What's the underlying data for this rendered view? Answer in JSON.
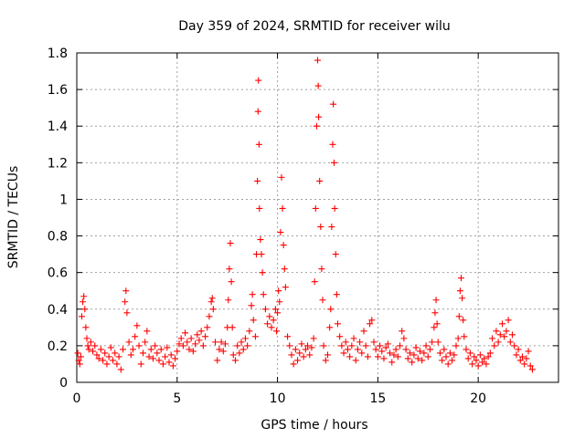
{
  "chart_data": {
    "type": "scatter",
    "title": "Day 359 of 2024, SRMTID for receiver wilu",
    "xlabel": "GPS time / hours",
    "ylabel": "SRMTID / TECUs",
    "xlim": [
      0,
      24
    ],
    "ylim": [
      0,
      1.8
    ],
    "x_ticks": [
      0,
      5,
      10,
      15,
      20
    ],
    "x_tick_labels": [
      "0",
      "5",
      "10",
      "15",
      "20"
    ],
    "y_ticks": [
      0,
      0.2,
      0.4,
      0.6,
      0.8,
      1.0,
      1.2,
      1.4,
      1.6,
      1.8
    ],
    "y_tick_labels": [
      "0",
      "0.2",
      "0.4",
      "0.6",
      "0.8",
      "1",
      "1.2",
      "1.4",
      "1.6",
      "1.8"
    ],
    "grid": true,
    "marker": "plus",
    "color": "#ff0000",
    "series": [
      {
        "name": "SRMTID",
        "points": [
          [
            0.05,
            0.16
          ],
          [
            0.1,
            0.12
          ],
          [
            0.15,
            0.1
          ],
          [
            0.2,
            0.14
          ],
          [
            0.25,
            0.36
          ],
          [
            0.3,
            0.44
          ],
          [
            0.35,
            0.47
          ],
          [
            0.4,
            0.4
          ],
          [
            0.45,
            0.3
          ],
          [
            0.5,
            0.24
          ],
          [
            0.55,
            0.2
          ],
          [
            0.6,
            0.18
          ],
          [
            0.7,
            0.22
          ],
          [
            0.8,
            0.17
          ],
          [
            0.9,
            0.2
          ],
          [
            1.0,
            0.15
          ],
          [
            1.1,
            0.13
          ],
          [
            1.2,
            0.18
          ],
          [
            1.3,
            0.12
          ],
          [
            1.4,
            0.16
          ],
          [
            1.5,
            0.1
          ],
          [
            1.6,
            0.14
          ],
          [
            1.7,
            0.19
          ],
          [
            1.8,
            0.12
          ],
          [
            1.9,
            0.16
          ],
          [
            2.0,
            0.1
          ],
          [
            2.1,
            0.14
          ],
          [
            2.2,
            0.07
          ],
          [
            2.3,
            0.18
          ],
          [
            2.4,
            0.44
          ],
          [
            2.45,
            0.5
          ],
          [
            2.5,
            0.38
          ],
          [
            2.6,
            0.22
          ],
          [
            2.7,
            0.15
          ],
          [
            2.8,
            0.18
          ],
          [
            2.9,
            0.25
          ],
          [
            3.0,
            0.31
          ],
          [
            3.1,
            0.2
          ],
          [
            3.2,
            0.1
          ],
          [
            3.3,
            0.16
          ],
          [
            3.4,
            0.22
          ],
          [
            3.5,
            0.28
          ],
          [
            3.6,
            0.14
          ],
          [
            3.7,
            0.18
          ],
          [
            3.8,
            0.13
          ],
          [
            3.9,
            0.2
          ],
          [
            4.0,
            0.16
          ],
          [
            4.1,
            0.12
          ],
          [
            4.2,
            0.18
          ],
          [
            4.3,
            0.1
          ],
          [
            4.4,
            0.14
          ],
          [
            4.5,
            0.19
          ],
          [
            4.6,
            0.11
          ],
          [
            4.7,
            0.15
          ],
          [
            4.8,
            0.09
          ],
          [
            4.9,
            0.13
          ],
          [
            5.0,
            0.17
          ],
          [
            5.1,
            0.21
          ],
          [
            5.2,
            0.24
          ],
          [
            5.3,
            0.2
          ],
          [
            5.4,
            0.27
          ],
          [
            5.5,
            0.22
          ],
          [
            5.6,
            0.18
          ],
          [
            5.7,
            0.24
          ],
          [
            5.8,
            0.17
          ],
          [
            5.9,
            0.21
          ],
          [
            6.0,
            0.26
          ],
          [
            6.1,
            0.23
          ],
          [
            6.2,
            0.28
          ],
          [
            6.3,
            0.2
          ],
          [
            6.4,
            0.25
          ],
          [
            6.5,
            0.3
          ],
          [
            6.6,
            0.36
          ],
          [
            6.7,
            0.44
          ],
          [
            6.75,
            0.46
          ],
          [
            6.8,
            0.4
          ],
          [
            6.9,
            0.22
          ],
          [
            7.0,
            0.12
          ],
          [
            7.1,
            0.18
          ],
          [
            7.2,
            0.22
          ],
          [
            7.3,
            0.17
          ],
          [
            7.4,
            0.21
          ],
          [
            7.5,
            0.3
          ],
          [
            7.55,
            0.45
          ],
          [
            7.6,
            0.62
          ],
          [
            7.65,
            0.76
          ],
          [
            7.7,
            0.55
          ],
          [
            7.75,
            0.3
          ],
          [
            7.8,
            0.15
          ],
          [
            7.9,
            0.12
          ],
          [
            8.0,
            0.2
          ],
          [
            8.1,
            0.16
          ],
          [
            8.2,
            0.22
          ],
          [
            8.3,
            0.18
          ],
          [
            8.4,
            0.24
          ],
          [
            8.5,
            0.2
          ],
          [
            8.6,
            0.28
          ],
          [
            8.7,
            0.42
          ],
          [
            8.75,
            0.48
          ],
          [
            8.8,
            0.34
          ],
          [
            8.9,
            0.25
          ],
          [
            8.95,
            0.7
          ],
          [
            9.0,
            1.1
          ],
          [
            9.03,
            1.48
          ],
          [
            9.05,
            1.65
          ],
          [
            9.08,
            1.3
          ],
          [
            9.1,
            0.95
          ],
          [
            9.15,
            0.78
          ],
          [
            9.2,
            0.7
          ],
          [
            9.25,
            0.6
          ],
          [
            9.3,
            0.48
          ],
          [
            9.4,
            0.4
          ],
          [
            9.5,
            0.32
          ],
          [
            9.6,
            0.36
          ],
          [
            9.7,
            0.3
          ],
          [
            9.8,
            0.34
          ],
          [
            9.9,
            0.4
          ],
          [
            9.95,
            0.28
          ],
          [
            10.0,
            0.38
          ],
          [
            10.05,
            0.5
          ],
          [
            10.1,
            0.44
          ],
          [
            10.15,
            0.82
          ],
          [
            10.2,
            1.12
          ],
          [
            10.25,
            0.95
          ],
          [
            10.3,
            0.75
          ],
          [
            10.35,
            0.62
          ],
          [
            10.4,
            0.52
          ],
          [
            10.5,
            0.25
          ],
          [
            10.6,
            0.2
          ],
          [
            10.7,
            0.15
          ],
          [
            10.8,
            0.1
          ],
          [
            10.9,
            0.18
          ],
          [
            11.0,
            0.12
          ],
          [
            11.1,
            0.16
          ],
          [
            11.2,
            0.21
          ],
          [
            11.3,
            0.14
          ],
          [
            11.4,
            0.18
          ],
          [
            11.5,
            0.2
          ],
          [
            11.6,
            0.15
          ],
          [
            11.7,
            0.19
          ],
          [
            11.8,
            0.24
          ],
          [
            11.85,
            0.55
          ],
          [
            11.9,
            0.95
          ],
          [
            11.95,
            1.4
          ],
          [
            12.0,
            1.76
          ],
          [
            12.03,
            1.62
          ],
          [
            12.05,
            1.45
          ],
          [
            12.1,
            1.1
          ],
          [
            12.15,
            0.85
          ],
          [
            12.2,
            0.62
          ],
          [
            12.25,
            0.45
          ],
          [
            12.3,
            0.2
          ],
          [
            12.4,
            0.12
          ],
          [
            12.5,
            0.15
          ],
          [
            12.6,
            0.3
          ],
          [
            12.65,
            0.4
          ],
          [
            12.7,
            0.85
          ],
          [
            12.75,
            1.3
          ],
          [
            12.78,
            1.52
          ],
          [
            12.82,
            1.2
          ],
          [
            12.85,
            0.95
          ],
          [
            12.9,
            0.7
          ],
          [
            12.95,
            0.48
          ],
          [
            13.0,
            0.32
          ],
          [
            13.1,
            0.25
          ],
          [
            13.2,
            0.2
          ],
          [
            13.3,
            0.16
          ],
          [
            13.4,
            0.22
          ],
          [
            13.5,
            0.18
          ],
          [
            13.6,
            0.14
          ],
          [
            13.7,
            0.2
          ],
          [
            13.8,
            0.24
          ],
          [
            13.9,
            0.12
          ],
          [
            14.0,
            0.18
          ],
          [
            14.1,
            0.22
          ],
          [
            14.2,
            0.16
          ],
          [
            14.3,
            0.28
          ],
          [
            14.4,
            0.2
          ],
          [
            14.5,
            0.14
          ],
          [
            14.6,
            0.32
          ],
          [
            14.7,
            0.34
          ],
          [
            14.8,
            0.22
          ],
          [
            14.9,
            0.18
          ],
          [
            15.0,
            0.14
          ],
          [
            15.1,
            0.2
          ],
          [
            15.2,
            0.17
          ],
          [
            15.3,
            0.13
          ],
          [
            15.4,
            0.19
          ],
          [
            15.5,
            0.21
          ],
          [
            15.6,
            0.16
          ],
          [
            15.7,
            0.11
          ],
          [
            15.8,
            0.15
          ],
          [
            15.9,
            0.18
          ],
          [
            16.0,
            0.14
          ],
          [
            16.1,
            0.2
          ],
          [
            16.2,
            0.28
          ],
          [
            16.3,
            0.24
          ],
          [
            16.4,
            0.18
          ],
          [
            16.5,
            0.13
          ],
          [
            16.6,
            0.16
          ],
          [
            16.7,
            0.11
          ],
          [
            16.8,
            0.15
          ],
          [
            16.9,
            0.19
          ],
          [
            17.0,
            0.13
          ],
          [
            17.1,
            0.17
          ],
          [
            17.2,
            0.12
          ],
          [
            17.3,
            0.16
          ],
          [
            17.4,
            0.2
          ],
          [
            17.5,
            0.14
          ],
          [
            17.6,
            0.18
          ],
          [
            17.7,
            0.22
          ],
          [
            17.8,
            0.3
          ],
          [
            17.85,
            0.38
          ],
          [
            17.9,
            0.45
          ],
          [
            17.95,
            0.32
          ],
          [
            18.0,
            0.22
          ],
          [
            18.1,
            0.16
          ],
          [
            18.2,
            0.12
          ],
          [
            18.3,
            0.18
          ],
          [
            18.4,
            0.14
          ],
          [
            18.5,
            0.1
          ],
          [
            18.6,
            0.16
          ],
          [
            18.7,
            0.12
          ],
          [
            18.8,
            0.15
          ],
          [
            18.9,
            0.2
          ],
          [
            19.0,
            0.24
          ],
          [
            19.05,
            0.36
          ],
          [
            19.1,
            0.5
          ],
          [
            19.15,
            0.57
          ],
          [
            19.2,
            0.46
          ],
          [
            19.25,
            0.34
          ],
          [
            19.3,
            0.25
          ],
          [
            19.4,
            0.18
          ],
          [
            19.5,
            0.13
          ],
          [
            19.6,
            0.16
          ],
          [
            19.7,
            0.1
          ],
          [
            19.8,
            0.14
          ],
          [
            19.9,
            0.12
          ],
          [
            20.0,
            0.09
          ],
          [
            20.1,
            0.15
          ],
          [
            20.2,
            0.11
          ],
          [
            20.3,
            0.13
          ],
          [
            20.4,
            0.1
          ],
          [
            20.5,
            0.14
          ],
          [
            20.6,
            0.16
          ],
          [
            20.7,
            0.24
          ],
          [
            20.8,
            0.2
          ],
          [
            20.9,
            0.28
          ],
          [
            21.0,
            0.22
          ],
          [
            21.1,
            0.26
          ],
          [
            21.2,
            0.32
          ],
          [
            21.3,
            0.25
          ],
          [
            21.4,
            0.28
          ],
          [
            21.5,
            0.34
          ],
          [
            21.6,
            0.22
          ],
          [
            21.7,
            0.26
          ],
          [
            21.8,
            0.2
          ],
          [
            21.9,
            0.15
          ],
          [
            22.0,
            0.18
          ],
          [
            22.1,
            0.12
          ],
          [
            22.2,
            0.14
          ],
          [
            22.3,
            0.1
          ],
          [
            22.4,
            0.13
          ],
          [
            22.5,
            0.17
          ],
          [
            22.6,
            0.09
          ],
          [
            22.7,
            0.07
          ]
        ]
      }
    ]
  }
}
